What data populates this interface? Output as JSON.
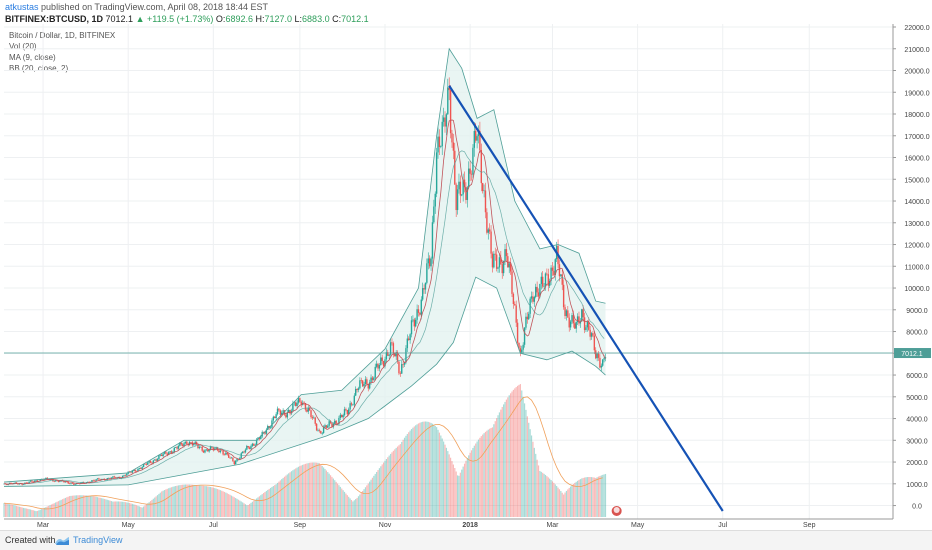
{
  "header": {
    "author": "atkustas",
    "published_text": "published on TradingView.com, April 08, 2018 18:44 EST",
    "symbol": "BITFINEX:BTCUSD, 1D",
    "last": "7012.1",
    "change": "+119.5 (+1.73%)",
    "open_label": "O:",
    "open": "6892.6",
    "high_label": "H:",
    "high": "7127.0",
    "low_label": "L:",
    "low": "6883.0",
    "close_label": "C:",
    "close": "7012.1"
  },
  "indicators": {
    "title": "Bitcoin / Dollar, 1D, BITFINEX",
    "vol": "Vol (20)",
    "ma": "MA (9, close)",
    "bb": "BB (20, close, 2)"
  },
  "footer": {
    "created_with": "Created with",
    "brand": "TradingView"
  },
  "colors": {
    "up": "#26a69a",
    "down": "#ef5350",
    "ma": "#c1545a",
    "bb_band": "#4e9e97",
    "bb_fill": "#e1f2ef",
    "trendline": "#1552b5",
    "price_line": "#4e9e97",
    "vol_ma": "#f0a05a"
  },
  "chart_data": {
    "type": "candlestick",
    "title": "Bitcoin / Dollar, 1D, BITFINEX",
    "y_axis": {
      "ticks": [
        0,
        1000,
        2000,
        3000,
        4000,
        5000,
        6000,
        7000,
        8000,
        9000,
        10000,
        11000,
        12000,
        13000,
        14000,
        15000,
        16000,
        17000,
        18000,
        19000,
        20000,
        21000,
        22000
      ],
      "tick_labels": [
        "0.0",
        "1000.0",
        "2000.0",
        "3000.0",
        "4000.0",
        "5000.0",
        "6000.0",
        "7000.0",
        "8000.0",
        "9000.0",
        "10000.0",
        "11000.0",
        "12000.0",
        "13000.0",
        "14000.0",
        "15000.0",
        "16000.0",
        "17000.0",
        "18000.0",
        "19000.0",
        "20000.0",
        "21000.0",
        "22000.0"
      ],
      "ylim": [
        -300,
        22000
      ]
    },
    "x_axis": {
      "tick_labels": [
        "Mar",
        "May",
        "Jul",
        "Sep",
        "Nov",
        "2018",
        "Mar",
        "May",
        "Jul",
        "Sep"
      ],
      "tick_dates": [
        "2017-03-01",
        "2017-05-01",
        "2017-07-01",
        "2017-09-01",
        "2017-11-01",
        "2018-01-01",
        "2018-03-01",
        "2018-05-01",
        "2018-07-01",
        "2018-09-01"
      ],
      "xlim": [
        "2017-02-01",
        "2018-10-31"
      ]
    },
    "last_price": 7012.1,
    "last_price_label": "7012.1",
    "price_points": [
      {
        "date": "2017-02-01",
        "close": 1000
      },
      {
        "date": "2017-02-15",
        "close": 1010
      },
      {
        "date": "2017-03-01",
        "close": 1220
      },
      {
        "date": "2017-03-10",
        "close": 1150
      },
      {
        "date": "2017-03-25",
        "close": 980
      },
      {
        "date": "2017-04-10",
        "close": 1200
      },
      {
        "date": "2017-04-25",
        "close": 1300
      },
      {
        "date": "2017-05-10",
        "close": 1750
      },
      {
        "date": "2017-05-25",
        "close": 2300
      },
      {
        "date": "2017-06-05",
        "close": 2650
      },
      {
        "date": "2017-06-12",
        "close": 2950
      },
      {
        "date": "2017-06-25",
        "close": 2550
      },
      {
        "date": "2017-07-05",
        "close": 2600
      },
      {
        "date": "2017-07-16",
        "close": 2000
      },
      {
        "date": "2017-07-25",
        "close": 2600
      },
      {
        "date": "2017-08-05",
        "close": 3200
      },
      {
        "date": "2017-08-15",
        "close": 4200
      },
      {
        "date": "2017-08-25",
        "close": 4350
      },
      {
        "date": "2017-09-02",
        "close": 4900
      },
      {
        "date": "2017-09-15",
        "close": 3400
      },
      {
        "date": "2017-09-25",
        "close": 3800
      },
      {
        "date": "2017-10-05",
        "close": 4300
      },
      {
        "date": "2017-10-12",
        "close": 5400
      },
      {
        "date": "2017-10-22",
        "close": 5800
      },
      {
        "date": "2017-11-05",
        "close": 7300
      },
      {
        "date": "2017-11-12",
        "close": 6200
      },
      {
        "date": "2017-11-20",
        "close": 8100
      },
      {
        "date": "2017-11-28",
        "close": 9700
      },
      {
        "date": "2017-12-04",
        "close": 11500
      },
      {
        "date": "2017-12-08",
        "close": 16500
      },
      {
        "date": "2017-12-13",
        "close": 17000
      },
      {
        "date": "2017-12-17",
        "close": 19200
      },
      {
        "date": "2017-12-22",
        "close": 14000
      },
      {
        "date": "2017-12-28",
        "close": 14500
      },
      {
        "date": "2018-01-06",
        "close": 17000
      },
      {
        "date": "2018-01-12",
        "close": 13800
      },
      {
        "date": "2018-01-17",
        "close": 11000
      },
      {
        "date": "2018-01-27",
        "close": 11500
      },
      {
        "date": "2018-02-02",
        "close": 9000
      },
      {
        "date": "2018-02-06",
        "close": 6900
      },
      {
        "date": "2018-02-15",
        "close": 9900
      },
      {
        "date": "2018-02-22",
        "close": 10000
      },
      {
        "date": "2018-03-04",
        "close": 11400
      },
      {
        "date": "2018-03-10",
        "close": 9000
      },
      {
        "date": "2018-03-18",
        "close": 8100
      },
      {
        "date": "2018-03-22",
        "close": 8900
      },
      {
        "date": "2018-03-28",
        "close": 7900
      },
      {
        "date": "2018-04-01",
        "close": 6900
      },
      {
        "date": "2018-04-06",
        "close": 6600
      },
      {
        "date": "2018-04-08",
        "close": 7012
      }
    ],
    "bollinger_upper": [
      {
        "date": "2017-02-01",
        "value": 1080
      },
      {
        "date": "2017-05-01",
        "value": 1500
      },
      {
        "date": "2017-06-10",
        "value": 3000
      },
      {
        "date": "2017-08-01",
        "value": 3000
      },
      {
        "date": "2017-09-02",
        "value": 5100
      },
      {
        "date": "2017-10-01",
        "value": 5300
      },
      {
        "date": "2017-11-01",
        "value": 7200
      },
      {
        "date": "2017-11-25",
        "value": 10000
      },
      {
        "date": "2017-12-08",
        "value": 17000
      },
      {
        "date": "2017-12-17",
        "value": 21000
      },
      {
        "date": "2017-12-26",
        "value": 20100
      },
      {
        "date": "2018-01-06",
        "value": 17800
      },
      {
        "date": "2018-01-18",
        "value": 18200
      },
      {
        "date": "2018-02-02",
        "value": 14000
      },
      {
        "date": "2018-02-20",
        "value": 11800
      },
      {
        "date": "2018-03-05",
        "value": 12000
      },
      {
        "date": "2018-03-20",
        "value": 11600
      },
      {
        "date": "2018-04-01",
        "value": 9400
      },
      {
        "date": "2018-04-08",
        "value": 9300
      }
    ],
    "bollinger_lower": [
      {
        "date": "2017-02-01",
        "value": 880
      },
      {
        "date": "2017-05-01",
        "value": 950
      },
      {
        "date": "2017-07-20",
        "value": 1900
      },
      {
        "date": "2017-09-20",
        "value": 3200
      },
      {
        "date": "2017-10-20",
        "value": 4000
      },
      {
        "date": "2017-11-20",
        "value": 5500
      },
      {
        "date": "2017-12-08",
        "value": 6500
      },
      {
        "date": "2017-12-20",
        "value": 7500
      },
      {
        "date": "2018-01-05",
        "value": 10500
      },
      {
        "date": "2018-01-20",
        "value": 10000
      },
      {
        "date": "2018-02-06",
        "value": 7000
      },
      {
        "date": "2018-02-25",
        "value": 6700
      },
      {
        "date": "2018-03-15",
        "value": 7100
      },
      {
        "date": "2018-04-01",
        "value": 6400
      },
      {
        "date": "2018-04-08",
        "value": 6000
      }
    ],
    "volume": [
      {
        "date": "2017-02-15",
        "value": 600
      },
      {
        "date": "2017-03-20",
        "value": 900
      },
      {
        "date": "2017-04-20",
        "value": 700
      },
      {
        "date": "2017-05-25",
        "value": 1400
      },
      {
        "date": "2017-06-20",
        "value": 1200
      },
      {
        "date": "2017-07-16",
        "value": 1300
      },
      {
        "date": "2017-08-15",
        "value": 1500
      },
      {
        "date": "2017-09-15",
        "value": 2300
      },
      {
        "date": "2017-10-12",
        "value": 1800
      },
      {
        "date": "2017-11-12",
        "value": 2800
      },
      {
        "date": "2017-12-08",
        "value": 4700
      },
      {
        "date": "2017-12-22",
        "value": 4800
      },
      {
        "date": "2018-01-17",
        "value": 3800
      },
      {
        "date": "2018-02-06",
        "value": 5200
      },
      {
        "date": "2018-02-20",
        "value": 2300
      },
      {
        "date": "2018-03-10",
        "value": 2700
      },
      {
        "date": "2018-03-22",
        "value": 2200
      },
      {
        "date": "2018-04-01",
        "value": 1700
      }
    ],
    "trendline": {
      "from": {
        "date": "2017-12-17",
        "value": 19300
      },
      "to": {
        "date": "2018-07-01",
        "value": -250
      }
    },
    "grid": true
  }
}
